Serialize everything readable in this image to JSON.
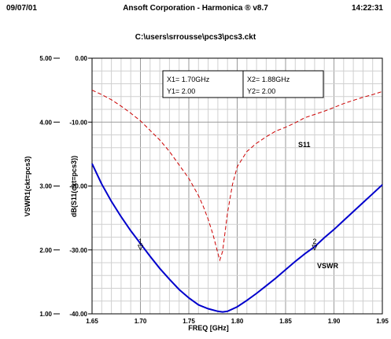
{
  "header": {
    "date": "09/07/01",
    "title": "Ansoft Corporation - Harmonica ® v8.7",
    "time": "14:22:31",
    "path": "C:\\users\\srrousse\\pcs3\\pcs3.ckt"
  },
  "chart_data": {
    "type": "line",
    "xlabel": "FREQ [GHz]",
    "ylabel_left": "VSWR1(ckt=pcs3)",
    "ylabel_right": "dB(S11(ckt=pcs3))",
    "xlim": [
      1.65,
      1.95
    ],
    "ylim_left": [
      1.0,
      5.0
    ],
    "ylim_right": [
      -40.0,
      0.0
    ],
    "x_ticks": [
      "1.65",
      "1.70",
      "1.75",
      "1.80",
      "1.85",
      "1.90",
      "1.95"
    ],
    "y_ticks_left": [
      "5.00",
      "4.00",
      "3.00",
      "2.00",
      "1.00"
    ],
    "y_ticks_right": [
      "0.00",
      "-10.00",
      "-20.00",
      "-30.00",
      "-40.00"
    ],
    "grid": true,
    "series": [
      {
        "name": "VSWR",
        "axis": "left",
        "color": "#0000cc",
        "style": "solid",
        "x": [
          1.65,
          1.66,
          1.67,
          1.68,
          1.69,
          1.7,
          1.71,
          1.72,
          1.73,
          1.74,
          1.75,
          1.76,
          1.77,
          1.78,
          1.785,
          1.79,
          1.8,
          1.81,
          1.82,
          1.83,
          1.84,
          1.85,
          1.86,
          1.87,
          1.88,
          1.89,
          1.9,
          1.91,
          1.92,
          1.93,
          1.94,
          1.95
        ],
        "y": [
          3.35,
          3.03,
          2.76,
          2.52,
          2.3,
          2.1,
          1.9,
          1.71,
          1.54,
          1.38,
          1.25,
          1.14,
          1.08,
          1.04,
          1.03,
          1.04,
          1.11,
          1.21,
          1.32,
          1.44,
          1.56,
          1.69,
          1.82,
          1.94,
          2.05,
          2.19,
          2.32,
          2.46,
          2.6,
          2.74,
          2.88,
          3.02
        ]
      },
      {
        "name": "S11",
        "axis": "right",
        "color": "#cc0000",
        "style": "dashed",
        "x": [
          1.65,
          1.66,
          1.67,
          1.68,
          1.69,
          1.7,
          1.71,
          1.72,
          1.73,
          1.74,
          1.75,
          1.76,
          1.765,
          1.77,
          1.775,
          1.78,
          1.782,
          1.785,
          1.79,
          1.795,
          1.8,
          1.81,
          1.82,
          1.83,
          1.84,
          1.85,
          1.86,
          1.87,
          1.88,
          1.89,
          1.9,
          1.91,
          1.92,
          1.93,
          1.94,
          1.95
        ],
        "y": [
          -5.0,
          -5.7,
          -6.5,
          -7.5,
          -8.6,
          -9.8,
          -11.3,
          -12.8,
          -14.6,
          -16.7,
          -18.8,
          -21.5,
          -23.2,
          -25.2,
          -27.6,
          -30.5,
          -31.6,
          -30.2,
          -24.2,
          -19.8,
          -17.0,
          -14.6,
          -13.3,
          -12.3,
          -11.4,
          -10.8,
          -10.1,
          -9.3,
          -8.8,
          -8.3,
          -7.7,
          -7.1,
          -6.6,
          -6.1,
          -5.7,
          -5.2
        ]
      }
    ],
    "markers": [
      {
        "label": "1",
        "x": 1.7,
        "y": 2.0
      },
      {
        "label": "2",
        "x": 1.88,
        "y": 2.0
      }
    ],
    "marker_box": {
      "x1": "X1= 1.70GHz",
      "y1": "Y1= 2.00",
      "x2": "X2= 1.88GHz",
      "y2": "Y2= 2.00"
    },
    "trace_labels": {
      "s11": "S11",
      "vswr": "VSWR"
    }
  }
}
